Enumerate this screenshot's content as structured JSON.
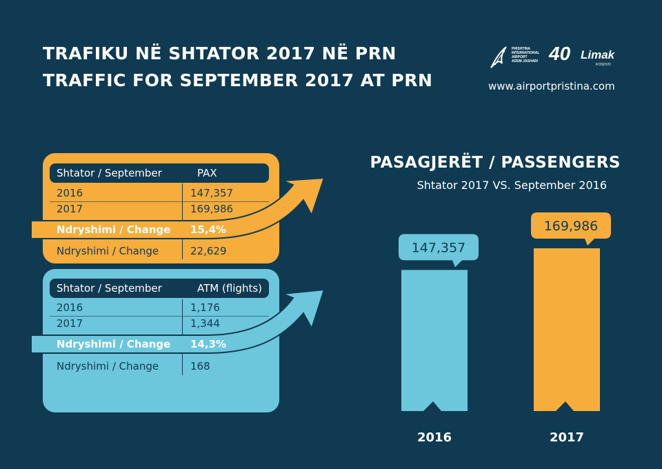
{
  "header": {
    "title_sq": "TRAFIKU NË SHTATOR 2017 NË PRN",
    "title_en": "TRAFFIC FOR SEPTEMBER 2017 AT PRN",
    "url": "www.airportpristina.com",
    "logo_airport_text": "PRISHTINA\nINTERNATIONAL\nAIRPORT\nADEM JASHARI",
    "logo_limak_number": "40",
    "logo_limak_brand": "Limak",
    "logo_limak_sub": "KOSOVO"
  },
  "pax_table": {
    "header_left": "Shtator / September",
    "header_right": "PAX",
    "rows": [
      {
        "label": "2016",
        "value": "147,357"
      },
      {
        "label": "2017",
        "value": "169,986"
      }
    ],
    "change_pct_label": "Ndryshimi / Change",
    "change_pct_value": "15,4%",
    "change_abs_label": "Ndryshimi / Change",
    "change_abs_value": "22,629"
  },
  "atm_table": {
    "header_left": "Shtator / September",
    "header_right": "ATM (flights)",
    "rows": [
      {
        "label": "2016",
        "value": "1,176"
      },
      {
        "label": "2017",
        "value": "1,344"
      }
    ],
    "change_pct_label": "Ndryshimi / Change",
    "change_pct_value": "14,3%",
    "change_abs_label": "Ndryshimi / Change",
    "change_abs_value": "168"
  },
  "colors": {
    "background": "#0f3a52",
    "orange": "#f6ad3c",
    "blue": "#6cc6dc",
    "navy": "#103a52"
  },
  "chart_data": {
    "type": "bar",
    "title": "PASAGJERËT / PASSENGERS",
    "subtitle": "Shtator 2017 VS. September 2016",
    "categories": [
      "2016",
      "2017"
    ],
    "values": [
      147357,
      169986
    ],
    "value_labels": [
      "147,357",
      "169,986"
    ],
    "bar_colors": [
      "#6cc6dc",
      "#f6ad3c"
    ],
    "ylim": [
      0,
      169986
    ],
    "grid": false,
    "legend": "none"
  }
}
